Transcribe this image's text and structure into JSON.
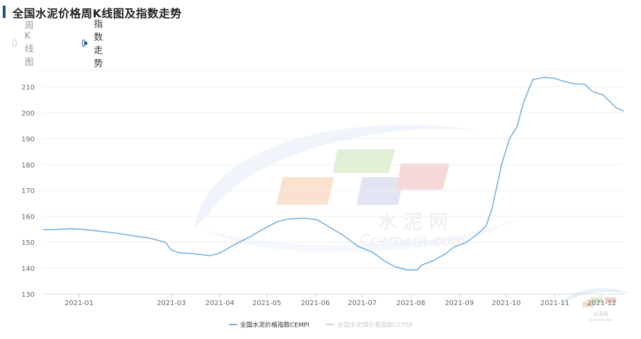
{
  "page": {
    "title": "全国水泥价格周K线图及指数走势"
  },
  "tabs": [
    {
      "label": "周K线图",
      "checked": false
    },
    {
      "label": "指数走势",
      "checked": true
    }
  ],
  "watermark": {
    "cn": "水 泥 网",
    "en": "Ccement.com",
    "corner_cn": "水泥网",
    "corner_en": "Ccement.com"
  },
  "chart_data": {
    "type": "line",
    "title": "",
    "xlabel": "",
    "ylabel": "",
    "ylim": [
      130,
      220
    ],
    "yticks": [
      130,
      140,
      150,
      160,
      170,
      180,
      190,
      200,
      210
    ],
    "xlim": [
      "2020-12-09",
      "2021-12-15"
    ],
    "xticks": [
      {
        "date": "2021-01-01",
        "label": "2021-01"
      },
      {
        "date": "2021-03-01",
        "label": "2021-03"
      },
      {
        "date": "2021-04-01",
        "label": "2021-04"
      },
      {
        "date": "2021-05-01",
        "label": "2021-05"
      },
      {
        "date": "2021-06-01",
        "label": "2021-06"
      },
      {
        "date": "2021-07-01",
        "label": "2021-07"
      },
      {
        "date": "2021-08-01",
        "label": "2021-08"
      },
      {
        "date": "2021-09-01",
        "label": "2021-09"
      },
      {
        "date": "2021-10-01",
        "label": "2021-10"
      },
      {
        "date": "2021-11-01",
        "label": "2021-11"
      },
      {
        "date": "2021-12-01",
        "label": "2021-12"
      }
    ],
    "grid": true,
    "legend_position": "bottom",
    "series": [
      {
        "name": "全国水泥价格指数CEMPI",
        "color": "#79aed9",
        "visible": true,
        "points": [
          [
            "2020-12-09",
            154.8
          ],
          [
            "2020-12-20",
            155.0
          ],
          [
            "2020-12-27",
            155.2
          ],
          [
            "2021-01-05",
            154.9
          ],
          [
            "2021-01-15",
            154.2
          ],
          [
            "2021-01-25",
            153.5
          ],
          [
            "2021-02-05",
            152.4
          ],
          [
            "2021-02-15",
            151.6
          ],
          [
            "2021-02-25",
            150.0
          ],
          [
            "2021-03-01",
            147.0
          ],
          [
            "2021-03-06",
            145.9
          ],
          [
            "2021-03-15",
            145.6
          ],
          [
            "2021-03-25",
            144.8
          ],
          [
            "2021-03-31",
            145.6
          ],
          [
            "2021-04-05",
            147.2
          ],
          [
            "2021-04-10",
            149.0
          ],
          [
            "2021-04-20",
            152.0
          ],
          [
            "2021-04-30",
            155.5
          ],
          [
            "2021-05-08",
            158.0
          ],
          [
            "2021-05-15",
            159.0
          ],
          [
            "2021-05-25",
            159.3
          ],
          [
            "2021-06-02",
            158.7
          ],
          [
            "2021-06-08",
            156.6
          ],
          [
            "2021-06-18",
            153.0
          ],
          [
            "2021-06-28",
            148.5
          ],
          [
            "2021-07-08",
            146.0
          ],
          [
            "2021-07-15",
            142.8
          ],
          [
            "2021-07-22",
            140.5
          ],
          [
            "2021-07-30",
            139.3
          ],
          [
            "2021-08-05",
            139.3
          ],
          [
            "2021-08-08",
            141.2
          ],
          [
            "2021-08-15",
            142.8
          ],
          [
            "2021-08-23",
            145.5
          ],
          [
            "2021-08-29",
            148.3
          ],
          [
            "2021-09-05",
            149.8
          ],
          [
            "2021-09-12",
            152.8
          ],
          [
            "2021-09-18",
            156.2
          ],
          [
            "2021-09-22",
            163.2
          ],
          [
            "2021-09-28",
            180.0
          ],
          [
            "2021-10-03",
            189.8
          ],
          [
            "2021-10-08",
            194.8
          ],
          [
            "2021-10-12",
            204.0
          ],
          [
            "2021-10-18",
            212.8
          ],
          [
            "2021-10-25",
            213.6
          ],
          [
            "2021-11-01",
            213.3
          ],
          [
            "2021-11-06",
            212.2
          ],
          [
            "2021-11-13",
            211.2
          ],
          [
            "2021-11-20",
            211.0
          ],
          [
            "2021-11-25",
            208.2
          ],
          [
            "2021-12-02",
            206.8
          ],
          [
            "2021-12-10",
            202.0
          ],
          [
            "2021-12-15",
            200.6
          ]
        ]
      },
      {
        "name": "全国水泥煤价差指数CCPDI",
        "color": "#cccccc",
        "visible": false,
        "points": []
      }
    ]
  }
}
